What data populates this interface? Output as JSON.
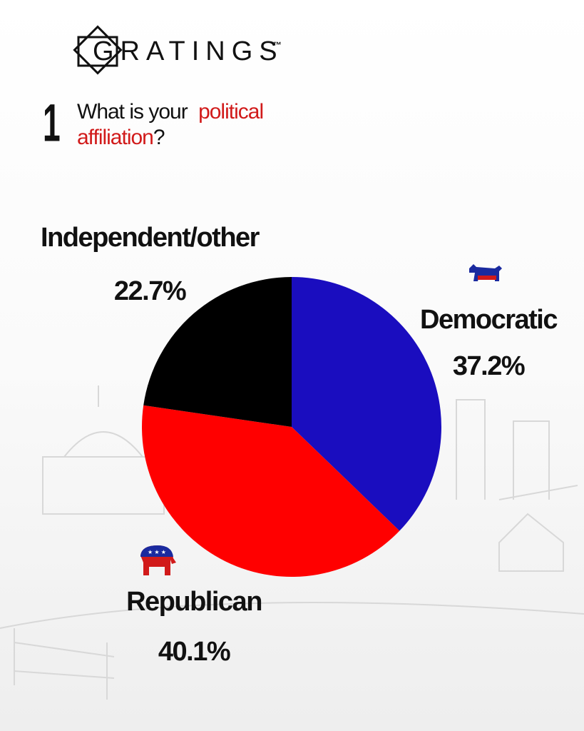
{
  "header": {
    "brand": "GRATINGS",
    "trademark": "™",
    "number": "1",
    "question": [
      "What is your",
      "political",
      "affiliation",
      "?"
    ]
  },
  "chart_data": {
    "type": "pie",
    "categories": [
      "Democratic",
      "Republican",
      "Independent/other"
    ],
    "values": [
      37.2,
      40.1,
      22.7
    ],
    "value_labels": [
      "37.2%",
      "40.1%",
      "22.7%"
    ],
    "colors": [
      "#1a0dbf",
      "#ff0000",
      "#000000"
    ]
  }
}
